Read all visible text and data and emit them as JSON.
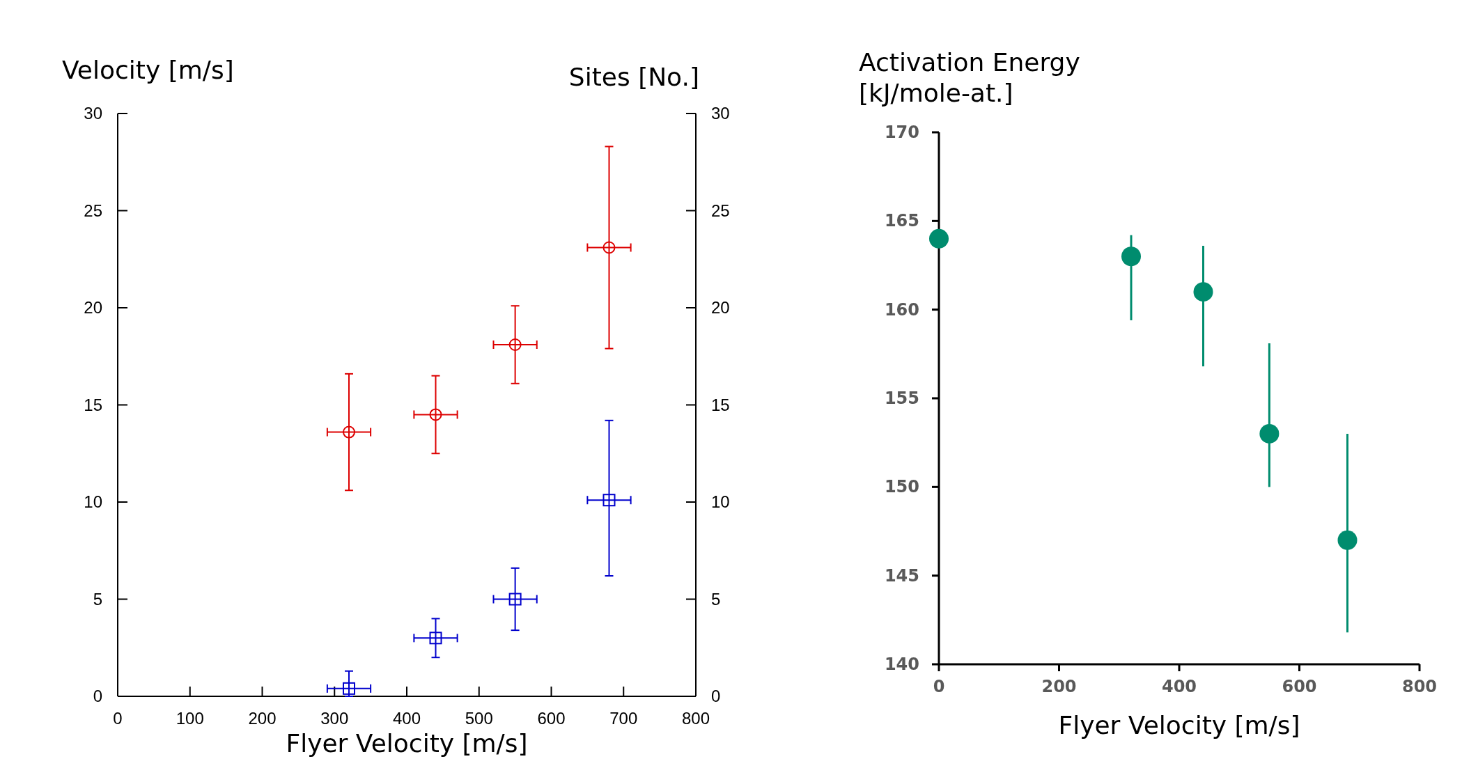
{
  "chart_data": [
    {
      "type": "scatter",
      "xlabel": "Flyer Velocity [m/s]",
      "ylabel": "Velocity [m/s]",
      "y2label": "Sites [No.]",
      "xlim": [
        0,
        800
      ],
      "xticks": [
        0,
        100,
        200,
        300,
        400,
        500,
        600,
        700,
        800
      ],
      "ylim": [
        0,
        30
      ],
      "yticks": [
        0,
        5,
        10,
        15,
        20,
        25,
        30
      ],
      "y2lim": [
        0,
        30
      ],
      "y2ticks": [
        0,
        5,
        10,
        15,
        20,
        25,
        30
      ],
      "series": [
        {
          "color": "#dd0000",
          "marker": "circle",
          "x": [
            320,
            440,
            550,
            680
          ],
          "values": [
            13.6,
            14.5,
            18.1,
            23.1
          ],
          "errors": [
            [
              10.6,
              16.6
            ],
            [
              12.5,
              16.5
            ],
            [
              16.1,
              20.1
            ],
            [
              17.9,
              28.3
            ]
          ],
          "xerrors": [
            30,
            30,
            30,
            30
          ]
        },
        {
          "color": "#0000cc",
          "marker": "square",
          "x": [
            320,
            440,
            550,
            680
          ],
          "values": [
            0.4,
            3.0,
            5.0,
            10.1
          ],
          "errors": [
            [
              0,
              1.3
            ],
            [
              2.0,
              4.0
            ],
            [
              3.4,
              6.6
            ],
            [
              6.2,
              14.2
            ]
          ],
          "xerrors": [
            30,
            30,
            30,
            30
          ]
        }
      ]
    },
    {
      "type": "scatter",
      "xlabel": "Flyer Velocity [m/s]",
      "ylabel": "Activation Energy [kJ/mole-at.]",
      "xlim": [
        0,
        800
      ],
      "xticks": [
        0,
        200,
        400,
        600,
        800
      ],
      "ylim": [
        140,
        170
      ],
      "yticks": [
        140,
        145,
        150,
        155,
        160,
        165,
        170
      ],
      "series": [
        {
          "color": "#008c6e",
          "marker": "circle",
          "x": [
            0,
            320,
            440,
            550,
            680
          ],
          "values": [
            164,
            163,
            161,
            153,
            147
          ],
          "errors": [
            null,
            [
              159.4,
              164.2
            ],
            [
              156.8,
              163.6
            ],
            [
              150.0,
              158.1
            ],
            [
              141.8,
              153.0
            ]
          ]
        }
      ]
    }
  ]
}
